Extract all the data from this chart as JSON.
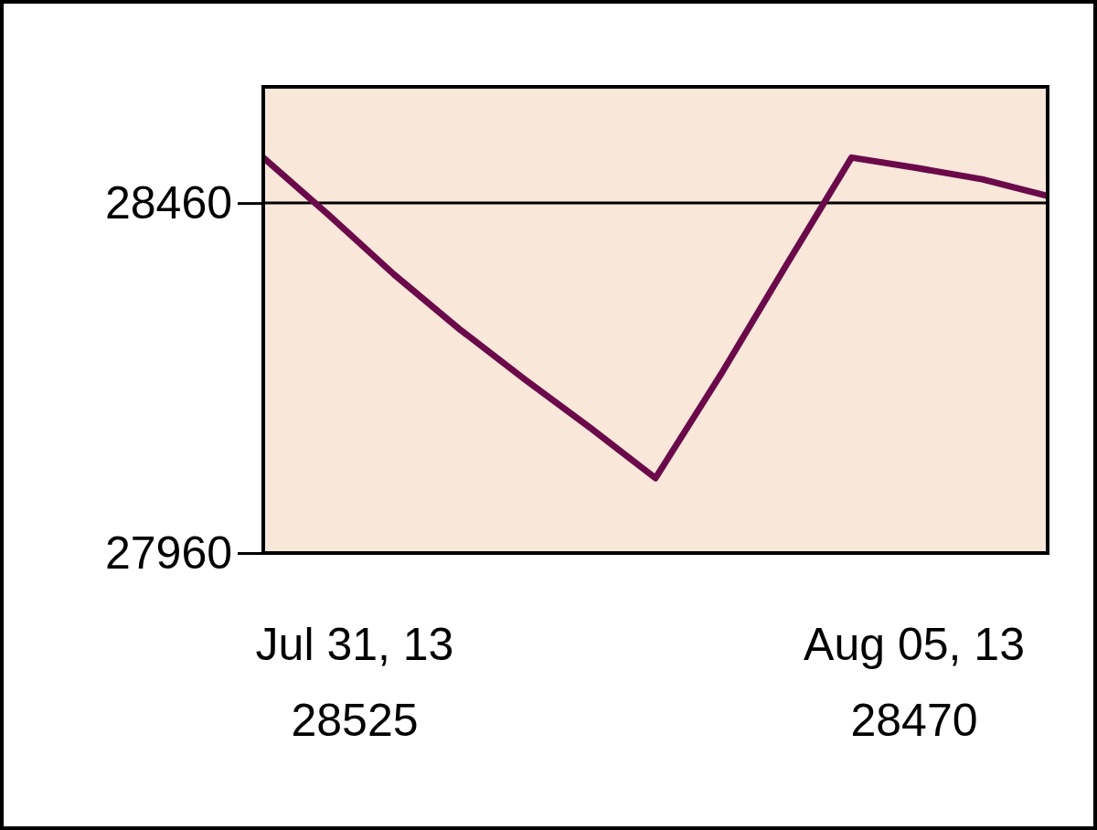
{
  "chart_data": {
    "type": "line",
    "categories": [
      null,
      null,
      null,
      null,
      null,
      null,
      null,
      null,
      null,
      null,
      null,
      null,
      null
    ],
    "series": [
      {
        "color": "#6b0a4a",
        "values": [
          28525,
          28443,
          28358,
          28280,
          28208,
          28139,
          28067,
          28215,
          28371,
          28525,
          28510,
          28494,
          28470
        ]
      }
    ],
    "ylim": [
      27960,
      28626
    ],
    "yticks": [
      27960,
      28460
    ],
    "grid": "y",
    "marker": "none",
    "line_style": "solid",
    "annotations": [
      "Jul 31, 13",
      "28525",
      "Aug 05, 13",
      "28470"
    ]
  }
}
